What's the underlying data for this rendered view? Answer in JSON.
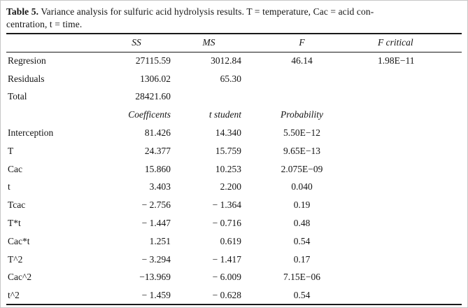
{
  "caption": {
    "label": "Table 5.",
    "line1": "Variance analysis for sulfuric acid hydrolysis results. T = temperature, Cac = acid con-",
    "line2": "centration, t = time."
  },
  "table": {
    "header": {
      "col0": "",
      "col1": "SS",
      "col2": "MS",
      "col3": "F",
      "col4": "F critical"
    },
    "rows": [
      {
        "label": "Regresion",
        "c1": "27115.59",
        "c2": "3012.84",
        "c3": "46.14",
        "c4": "1.98E−11",
        "italic": false
      },
      {
        "label": "Residuals",
        "c1": "1306.02",
        "c2": "65.30",
        "c3": "",
        "c4": "",
        "italic": false
      },
      {
        "label": "Total",
        "c1": "28421.60",
        "c2": "",
        "c3": "",
        "c4": "",
        "italic": false
      },
      {
        "label": "",
        "c1": "Coefficents",
        "c2": "t student",
        "c3": "Probability",
        "c4": "",
        "italic": true
      },
      {
        "label": "Interception",
        "c1": "81.426",
        "c2": "14.340",
        "c3": "5.50E−12",
        "c4": "",
        "italic": false
      },
      {
        "label": "T",
        "c1": "24.377",
        "c2": "15.759",
        "c3": "9.65E−13",
        "c4": "",
        "italic": false
      },
      {
        "label": "Cac",
        "c1": "15.860",
        "c2": "10.253",
        "c3": "2.075E−09",
        "c4": "",
        "italic": false
      },
      {
        "label": "t",
        "c1": "3.403",
        "c2": "2.200",
        "c3": "0.040",
        "c4": "",
        "italic": false
      },
      {
        "label": "Tcac",
        "c1": "− 2.756",
        "c2": "− 1.364",
        "c3": "0.19",
        "c4": "",
        "italic": false
      },
      {
        "label": "T*t",
        "c1": "− 1.447",
        "c2": "− 0.716",
        "c3": "0.48",
        "c4": "",
        "italic": false
      },
      {
        "label": "Cac*t",
        "c1": "1.251",
        "c2": "0.619",
        "c3": "0.54",
        "c4": "",
        "italic": false
      },
      {
        "label": "T^2",
        "c1": "− 3.294",
        "c2": "− 1.417",
        "c3": "0.17",
        "c4": "",
        "italic": false
      },
      {
        "label": "Cac^2",
        "c1": "−13.969",
        "c2": "− 6.009",
        "c3": "7.15E−06",
        "c4": "",
        "italic": false
      },
      {
        "label": "t^2",
        "c1": "− 1.459",
        "c2": "− 0.628",
        "c3": "0.54",
        "c4": "",
        "italic": false
      }
    ]
  },
  "colors": {
    "text": "#141414",
    "rule": "#1a1a1a",
    "background": "#ffffff"
  }
}
